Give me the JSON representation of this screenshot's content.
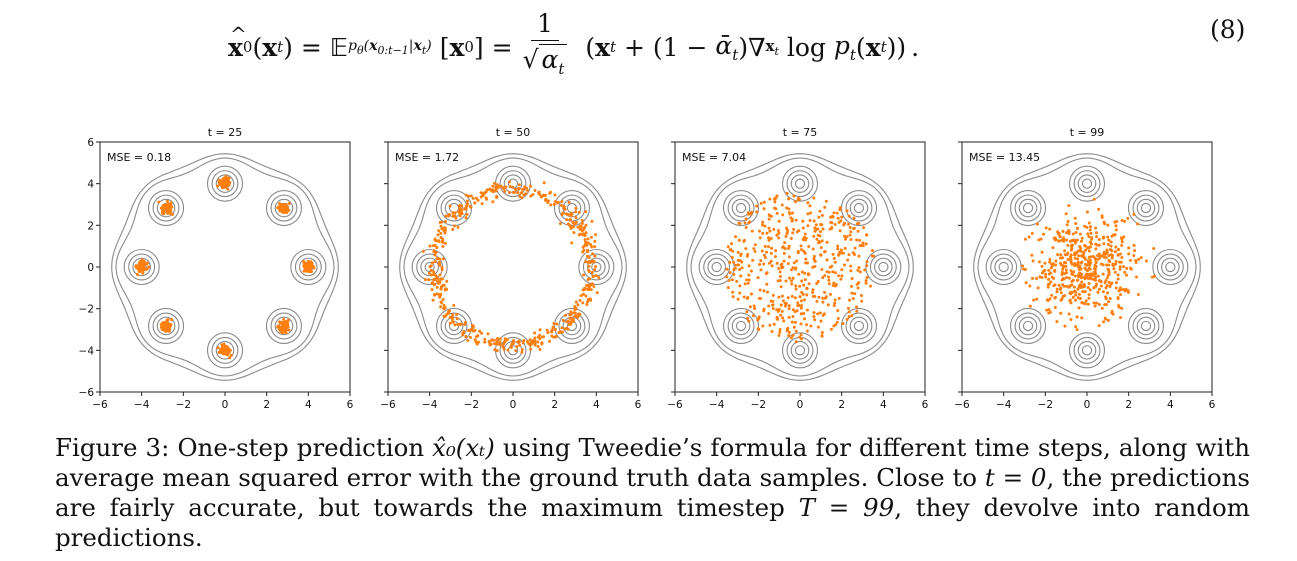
{
  "equation": {
    "lhs": "x̂₀(xₜ)",
    "expectation": "𝔼",
    "expectation_subscript": "p_θ(x_{0:t−1}|x_t)",
    "argument": "[x₀]",
    "fraction_numerator": "1",
    "fraction_denominator": "√α_t",
    "rhs": "(xₜ + (1 − ᾱₜ)∇ₓₜ log pₜ(xₜ)).",
    "number": "(8)"
  },
  "chart_data": [
    {
      "type": "scatter",
      "title": "t = 25",
      "annotation": "MSE = 0.18",
      "xlim": [
        -6,
        6
      ],
      "ylim": [
        -6,
        6
      ],
      "xticks": [
        "−6",
        "−4",
        "−2",
        "0",
        "2",
        "4",
        "6"
      ],
      "yticks": [
        "6",
        "4",
        "2",
        "0",
        "−2",
        "−4",
        "−6"
      ],
      "contour_centers": [
        [
          0,
          4
        ],
        [
          2.83,
          2.83
        ],
        [
          4,
          0
        ],
        [
          2.83,
          -2.83
        ],
        [
          0,
          -4
        ],
        [
          -2.83,
          -2.83
        ],
        [
          -4,
          0
        ],
        [
          -2.83,
          2.83
        ]
      ],
      "point_spread": "tight clusters on the 8 modes",
      "series": [
        {
          "values_description": "samples concentrated at 8 Gaussian modes on a circle of radius 4",
          "color": "#ff7f0e"
        }
      ]
    },
    {
      "type": "scatter",
      "title": "t = 50",
      "annotation": "MSE = 1.72",
      "xlim": [
        -6,
        6
      ],
      "ylim": [
        -6,
        6
      ],
      "xticks": [
        "−6",
        "−4",
        "−2",
        "0",
        "2",
        "4",
        "6"
      ],
      "yticks": [
        "",
        "",
        "",
        "",
        "",
        "",
        ""
      ],
      "contour_centers": [
        [
          0,
          4
        ],
        [
          2.83,
          2.83
        ],
        [
          4,
          0
        ],
        [
          2.83,
          -2.83
        ],
        [
          0,
          -4
        ],
        [
          -2.83,
          -2.83
        ],
        [
          -4,
          0
        ],
        [
          -2.83,
          2.83
        ]
      ],
      "point_spread": "ring of radius ~3.8",
      "series": [
        {
          "values_description": "samples spread along a ring",
          "color": "#ff7f0e"
        }
      ]
    },
    {
      "type": "scatter",
      "title": "t = 75",
      "annotation": "MSE = 7.04",
      "xlim": [
        -6,
        6
      ],
      "ylim": [
        -6,
        6
      ],
      "xticks": [
        "−6",
        "−4",
        "−2",
        "0",
        "2",
        "4",
        "6"
      ],
      "yticks": [
        "",
        "",
        "",
        "",
        "",
        "",
        ""
      ],
      "contour_centers": [
        [
          0,
          4
        ],
        [
          2.83,
          2.83
        ],
        [
          4,
          0
        ],
        [
          2.83,
          -2.83
        ],
        [
          0,
          -4
        ],
        [
          -2.83,
          -2.83
        ],
        [
          -4,
          0
        ],
        [
          -2.83,
          2.83
        ]
      ],
      "point_spread": "filled disk of radius ~3.5",
      "series": [
        {
          "values_description": "samples filling the disk",
          "color": "#ff7f0e"
        }
      ]
    },
    {
      "type": "scatter",
      "title": "t = 99",
      "annotation": "MSE = 13.45",
      "xlim": [
        -6,
        6
      ],
      "ylim": [
        -6,
        6
      ],
      "xticks": [
        "−6",
        "−4",
        "−2",
        "0",
        "2",
        "4",
        "6"
      ],
      "yticks": [
        "",
        "",
        "",
        "",
        "",
        "",
        ""
      ],
      "contour_centers": [
        [
          0,
          4
        ],
        [
          2.83,
          2.83
        ],
        [
          4,
          0
        ],
        [
          2.83,
          -2.83
        ],
        [
          0,
          -4
        ],
        [
          -2.83,
          -2.83
        ],
        [
          -4,
          0
        ],
        [
          -2.83,
          2.83
        ]
      ],
      "point_spread": "Gaussian blob around the origin",
      "series": [
        {
          "values_description": "samples near the origin",
          "color": "#ff7f0e"
        }
      ]
    }
  ],
  "caption": {
    "label": "Figure 3:",
    "text_1": "One-step prediction",
    "math_1": "x̂₀(xₜ)",
    "text_2": "using Tweedie’s formula for different time steps, along with average mean squared error with the ground truth data samples. Close to",
    "math_2": "t = 0",
    "text_3": ", the predictions are fairly accurate, but towards the maximum timestep",
    "math_3": "T = 99",
    "text_4": ", they devolve into random predictions."
  }
}
